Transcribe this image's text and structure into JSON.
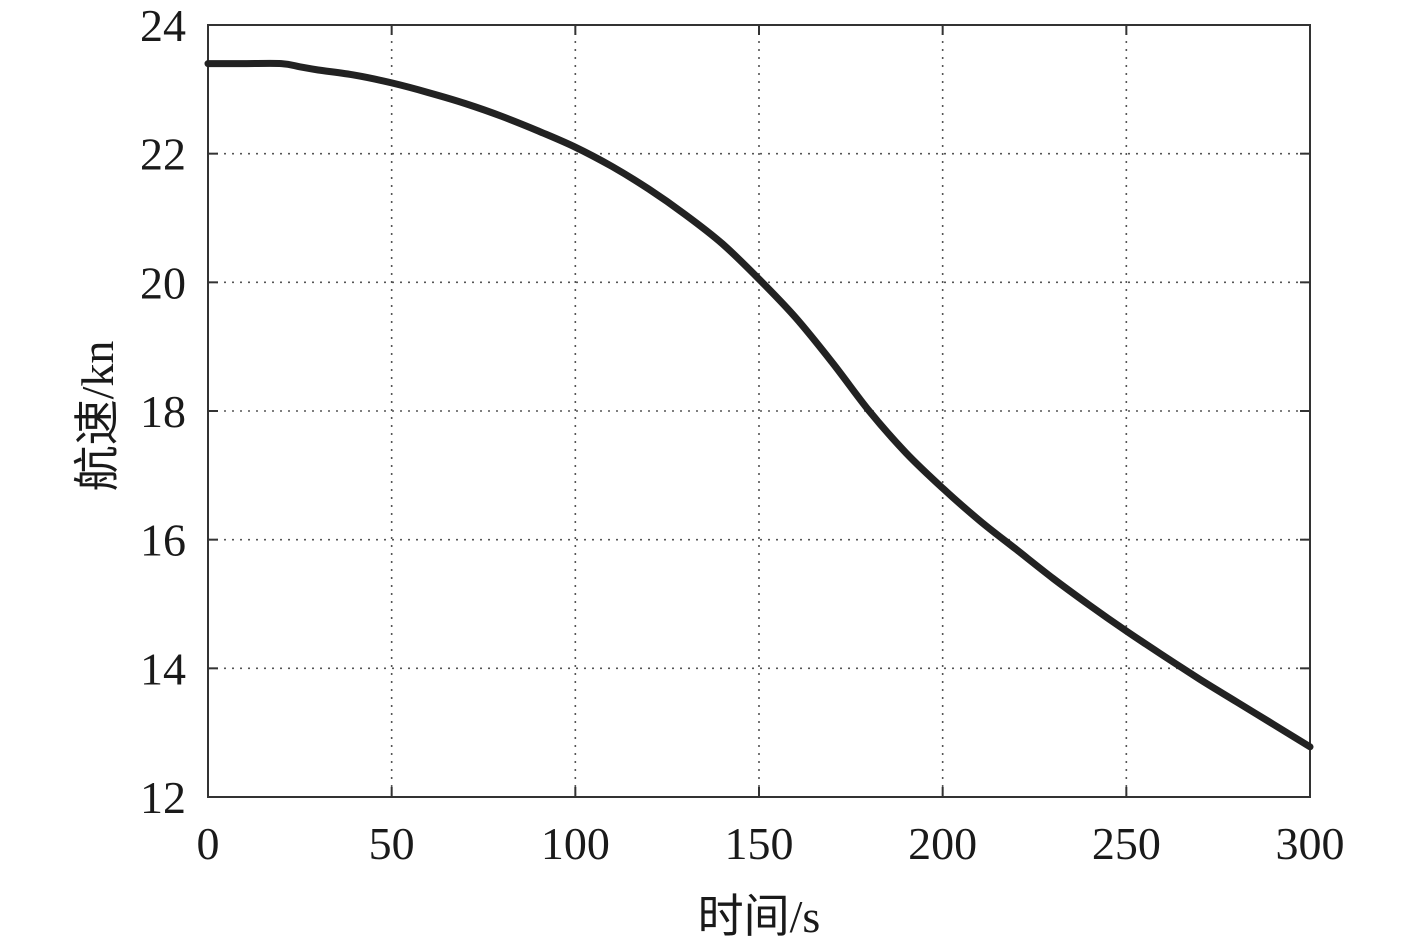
{
  "chart_data": {
    "type": "line",
    "title": "",
    "xlabel": "时间/s",
    "ylabel": "航速/kn",
    "xlim": [
      0,
      300
    ],
    "ylim": [
      12,
      24
    ],
    "xticks": [
      0,
      50,
      100,
      150,
      200,
      250,
      300
    ],
    "yticks": [
      12,
      14,
      16,
      18,
      20,
      22,
      24
    ],
    "xtick_labels": [
      "0",
      "50",
      "100",
      "150",
      "200",
      "250",
      "300"
    ],
    "ytick_labels": [
      "12",
      "14",
      "16",
      "18",
      "20",
      "22",
      "24"
    ],
    "grid": true,
    "legend": "none",
    "series": [
      {
        "color": "#222222",
        "x": [
          0,
          10,
          20,
          25,
          30,
          40,
          50,
          60,
          70,
          80,
          90,
          100,
          110,
          120,
          130,
          140,
          150,
          160,
          170,
          180,
          190,
          200,
          210,
          220,
          230,
          240,
          250,
          260,
          270,
          280,
          290,
          300
        ],
        "y": [
          23.4,
          23.4,
          23.4,
          23.35,
          23.3,
          23.22,
          23.1,
          22.95,
          22.78,
          22.58,
          22.35,
          22.1,
          21.8,
          21.45,
          21.05,
          20.6,
          20.05,
          19.45,
          18.75,
          18.0,
          17.35,
          16.8,
          16.3,
          15.85,
          15.4,
          14.98,
          14.58,
          14.2,
          13.83,
          13.48,
          13.13,
          12.78
        ]
      }
    ]
  }
}
